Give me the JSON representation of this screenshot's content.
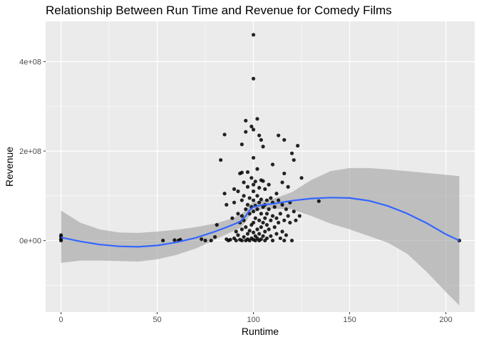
{
  "chart_data": {
    "type": "scatter",
    "title": "Relationship Between Run Time and Revenue for Comedy Films",
    "xlabel": "Runtime",
    "ylabel": "Revenue",
    "xlim": [
      -8,
      215
    ],
    "ylim": [
      -160000000,
      490000000
    ],
    "x_ticks": [
      {
        "value": 0,
        "label": "0"
      },
      {
        "value": 50,
        "label": "50"
      },
      {
        "value": 100,
        "label": "100"
      },
      {
        "value": 150,
        "label": "150"
      },
      {
        "value": 200,
        "label": "200"
      }
    ],
    "y_ticks": [
      {
        "value": 0,
        "label": "0e+00"
      },
      {
        "value": 200000000,
        "label": "2e+08"
      },
      {
        "value": 400000000,
        "label": "4e+08"
      }
    ],
    "grid": true,
    "background_color": "#ebebeb",
    "grid_color": "#ffffff",
    "point_color": "#000000",
    "smooth_color": "#3366ff",
    "band_color": "#999999",
    "points": [
      [
        0,
        0
      ],
      [
        0,
        3000000
      ],
      [
        0,
        8000000
      ],
      [
        0,
        12000000
      ],
      [
        53,
        0
      ],
      [
        59,
        1000000
      ],
      [
        61,
        0
      ],
      [
        62,
        2000000
      ],
      [
        73,
        3000000
      ],
      [
        75,
        0
      ],
      [
        78,
        0
      ],
      [
        80,
        8000000
      ],
      [
        81,
        35000000
      ],
      [
        83,
        180000000
      ],
      [
        85,
        237000000
      ],
      [
        85,
        105000000
      ],
      [
        86,
        80000000
      ],
      [
        86,
        3000000
      ],
      [
        87,
        0
      ],
      [
        88,
        2000000
      ],
      [
        89,
        50000000
      ],
      [
        90,
        115000000
      ],
      [
        90,
        85000000
      ],
      [
        90,
        5000000
      ],
      [
        91,
        20000000
      ],
      [
        91,
        0
      ],
      [
        92,
        110000000
      ],
      [
        92,
        60000000
      ],
      [
        92,
        12000000
      ],
      [
        93,
        150000000
      ],
      [
        93,
        40000000
      ],
      [
        93,
        2000000
      ],
      [
        94,
        215000000
      ],
      [
        94,
        152000000
      ],
      [
        94,
        90000000
      ],
      [
        94,
        55000000
      ],
      [
        94,
        25000000
      ],
      [
        94,
        0
      ],
      [
        95,
        130000000
      ],
      [
        95,
        100000000
      ],
      [
        95,
        45000000
      ],
      [
        95,
        8000000
      ],
      [
        96,
        268000000
      ],
      [
        96,
        243000000
      ],
      [
        96,
        70000000
      ],
      [
        96,
        30000000
      ],
      [
        96,
        0
      ],
      [
        97,
        153000000
      ],
      [
        97,
        120000000
      ],
      [
        97,
        80000000
      ],
      [
        97,
        15000000
      ],
      [
        97,
        3000000
      ],
      [
        98,
        95000000
      ],
      [
        98,
        60000000
      ],
      [
        98,
        22000000
      ],
      [
        98,
        0
      ],
      [
        99,
        255000000
      ],
      [
        99,
        140000000
      ],
      [
        99,
        75000000
      ],
      [
        99,
        35000000
      ],
      [
        99,
        5000000
      ],
      [
        100,
        460000000
      ],
      [
        100,
        362000000
      ],
      [
        100,
        248000000
      ],
      [
        100,
        185000000
      ],
      [
        100,
        125000000
      ],
      [
        100,
        110000000
      ],
      [
        100,
        90000000
      ],
      [
        100,
        65000000
      ],
      [
        100,
        40000000
      ],
      [
        100,
        18000000
      ],
      [
        100,
        2000000
      ],
      [
        101,
        132000000
      ],
      [
        101,
        78000000
      ],
      [
        101,
        50000000
      ],
      [
        101,
        10000000
      ],
      [
        101,
        0
      ],
      [
        102,
        272000000
      ],
      [
        102,
        160000000
      ],
      [
        102,
        100000000
      ],
      [
        102,
        70000000
      ],
      [
        102,
        25000000
      ],
      [
        102,
        5000000
      ],
      [
        103,
        235000000
      ],
      [
        103,
        118000000
      ],
      [
        103,
        85000000
      ],
      [
        103,
        45000000
      ],
      [
        103,
        15000000
      ],
      [
        103,
        0
      ],
      [
        104,
        225000000
      ],
      [
        104,
        135000000
      ],
      [
        104,
        92000000
      ],
      [
        104,
        60000000
      ],
      [
        104,
        30000000
      ],
      [
        104,
        3000000
      ],
      [
        105,
        210000000
      ],
      [
        105,
        133000000
      ],
      [
        105,
        75000000
      ],
      [
        105,
        40000000
      ],
      [
        105,
        10000000
      ],
      [
        106,
        115000000
      ],
      [
        106,
        80000000
      ],
      [
        106,
        50000000
      ],
      [
        106,
        20000000
      ],
      [
        106,
        0
      ],
      [
        107,
        90000000
      ],
      [
        107,
        60000000
      ],
      [
        107,
        35000000
      ],
      [
        107,
        5000000
      ],
      [
        108,
        125000000
      ],
      [
        108,
        70000000
      ],
      [
        108,
        25000000
      ],
      [
        109,
        95000000
      ],
      [
        109,
        45000000
      ],
      [
        109,
        10000000
      ],
      [
        110,
        170000000
      ],
      [
        110,
        85000000
      ],
      [
        110,
        55000000
      ],
      [
        110,
        0
      ],
      [
        111,
        75000000
      ],
      [
        111,
        30000000
      ],
      [
        112,
        105000000
      ],
      [
        112,
        50000000
      ],
      [
        112,
        15000000
      ],
      [
        113,
        235000000
      ],
      [
        113,
        90000000
      ],
      [
        113,
        40000000
      ],
      [
        114,
        60000000
      ],
      [
        114,
        5000000
      ],
      [
        115,
        130000000
      ],
      [
        115,
        80000000
      ],
      [
        115,
        20000000
      ],
      [
        116,
        225000000
      ],
      [
        116,
        150000000
      ],
      [
        116,
        45000000
      ],
      [
        116,
        0
      ],
      [
        117,
        70000000
      ],
      [
        117,
        12000000
      ],
      [
        118,
        120000000
      ],
      [
        118,
        55000000
      ],
      [
        119,
        85000000
      ],
      [
        119,
        40000000
      ],
      [
        120,
        195000000
      ],
      [
        120,
        0
      ],
      [
        121,
        180000000
      ],
      [
        121,
        65000000
      ],
      [
        122,
        45000000
      ],
      [
        123,
        212000000
      ],
      [
        124,
        55000000
      ],
      [
        125,
        140000000
      ],
      [
        134,
        88000000
      ],
      [
        207,
        0
      ]
    ],
    "smooth": [
      [
        0,
        7000000
      ],
      [
        10,
        -2000000
      ],
      [
        20,
        -9000000
      ],
      [
        30,
        -13000000
      ],
      [
        40,
        -14000000
      ],
      [
        50,
        -11000000
      ],
      [
        60,
        -4000000
      ],
      [
        70,
        6000000
      ],
      [
        80,
        20000000
      ],
      [
        88,
        33000000
      ],
      [
        93,
        42000000
      ],
      [
        96,
        55000000
      ],
      [
        98,
        68000000
      ],
      [
        100,
        75000000
      ],
      [
        105,
        80000000
      ],
      [
        110,
        82000000
      ],
      [
        120,
        89000000
      ],
      [
        130,
        94000000
      ],
      [
        140,
        96000000
      ],
      [
        150,
        95000000
      ],
      [
        160,
        89000000
      ],
      [
        170,
        77000000
      ],
      [
        180,
        60000000
      ],
      [
        190,
        39000000
      ],
      [
        200,
        14000000
      ],
      [
        207,
        0
      ]
    ],
    "band_upper": [
      [
        0,
        67000000
      ],
      [
        10,
        40000000
      ],
      [
        20,
        25000000
      ],
      [
        30,
        18000000
      ],
      [
        40,
        17000000
      ],
      [
        50,
        20000000
      ],
      [
        60,
        24000000
      ],
      [
        70,
        30000000
      ],
      [
        80,
        38000000
      ],
      [
        88,
        48000000
      ],
      [
        93,
        57000000
      ],
      [
        96,
        68000000
      ],
      [
        98,
        80000000
      ],
      [
        100,
        86000000
      ],
      [
        105,
        90000000
      ],
      [
        110,
        93000000
      ],
      [
        120,
        108000000
      ],
      [
        130,
        135000000
      ],
      [
        140,
        155000000
      ],
      [
        150,
        162000000
      ],
      [
        160,
        162000000
      ],
      [
        170,
        159000000
      ],
      [
        180,
        155000000
      ],
      [
        190,
        151000000
      ],
      [
        200,
        147000000
      ],
      [
        207,
        144000000
      ]
    ],
    "band_lower": [
      [
        0,
        -50000000
      ],
      [
        10,
        -45000000
      ],
      [
        20,
        -45000000
      ],
      [
        30,
        -46000000
      ],
      [
        40,
        -47000000
      ],
      [
        50,
        -42000000
      ],
      [
        60,
        -32000000
      ],
      [
        70,
        -18000000
      ],
      [
        80,
        2000000
      ],
      [
        88,
        18000000
      ],
      [
        93,
        28000000
      ],
      [
        96,
        42000000
      ],
      [
        98,
        56000000
      ],
      [
        100,
        64000000
      ],
      [
        105,
        70000000
      ],
      [
        110,
        71000000
      ],
      [
        120,
        70000000
      ],
      [
        130,
        55000000
      ],
      [
        140,
        38000000
      ],
      [
        150,
        25000000
      ],
      [
        160,
        10000000
      ],
      [
        170,
        -5000000
      ],
      [
        180,
        -30000000
      ],
      [
        190,
        -70000000
      ],
      [
        200,
        -115000000
      ],
      [
        207,
        -145000000
      ]
    ]
  }
}
